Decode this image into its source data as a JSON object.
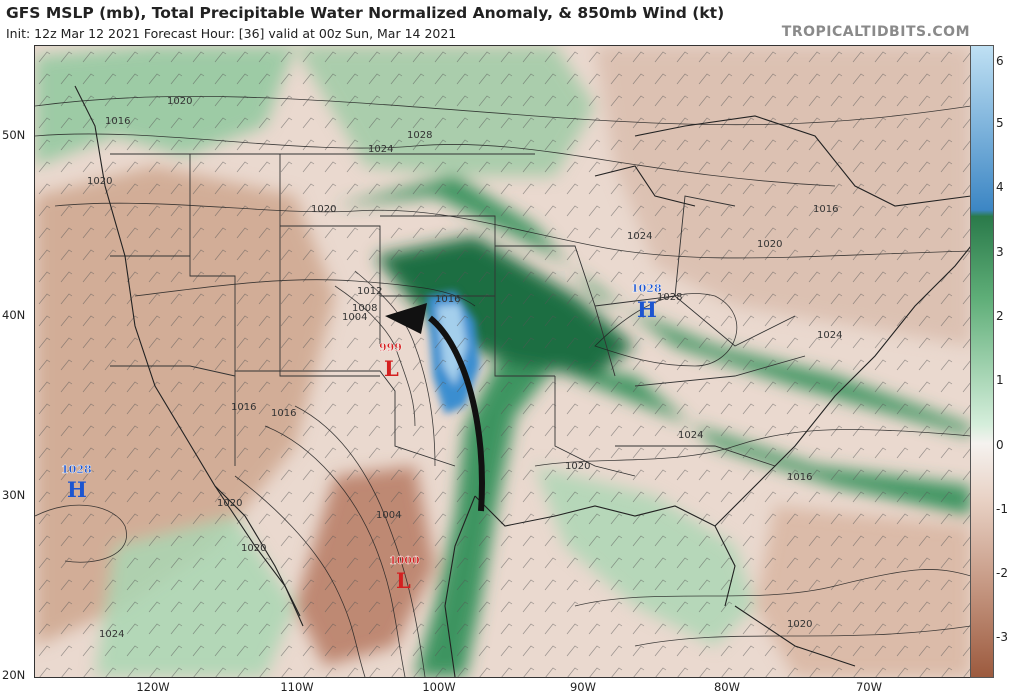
{
  "header": {
    "title": "GFS MSLP (mb), Total Precipitable Water Normalized Anomaly, & 850mb Wind (kt)",
    "subtitle": "Init: 12z Mar 12 2021   Forecast Hour: [36]   valid at 00z Sun, Mar 14 2021",
    "site": "TROPICALTIDBITS.COM"
  },
  "axes": {
    "lat_labels": [
      "50N",
      "40N",
      "30N",
      "20N"
    ],
    "lon_labels": [
      "120W",
      "110W",
      "100W",
      "90W",
      "80W",
      "70W"
    ]
  },
  "colorbar": {
    "ticks": [
      "6",
      "5",
      "4",
      "3",
      "2",
      "1",
      "0",
      "-1",
      "-2",
      "-3"
    ],
    "colors": {
      "high_blue": "#3c86c4",
      "light_blue": "#bfe0f3",
      "dark_green": "#2a7a4a",
      "mid_green": "#5fae78",
      "light_green": "#d5eedb",
      "neutral": "#f5f2ef",
      "light_brown": "#e8d1c4",
      "mid_brown": "#c79a85",
      "dark_brown": "#9c5a3e"
    }
  },
  "map": {
    "colors": {
      "land_anomaly_negative": "#d9b9a6",
      "anomaly_positive": "#5aa874",
      "anomaly_strong": "#1f6e42",
      "anomaly_extreme": "#3a8ed0",
      "low_center": "#d42020",
      "high_center": "#1c55d0",
      "isobar": "#222222"
    },
    "pressure_centers": [
      {
        "type": "L",
        "value": "999"
      },
      {
        "type": "L",
        "value": "1000"
      },
      {
        "type": "H",
        "value": "1028"
      },
      {
        "type": "H",
        "value": "1028"
      }
    ],
    "isobar_labels": [
      "1020",
      "1016",
      "1028",
      "1024",
      "1020",
      "1020",
      "1016",
      "1024",
      "1020",
      "1016",
      "1012",
      "1008",
      "1004",
      "1016",
      "1016",
      "1020",
      "1020",
      "1024",
      "1020",
      "1024",
      "1024",
      "1020",
      "1004",
      "1016",
      "1028"
    ]
  }
}
